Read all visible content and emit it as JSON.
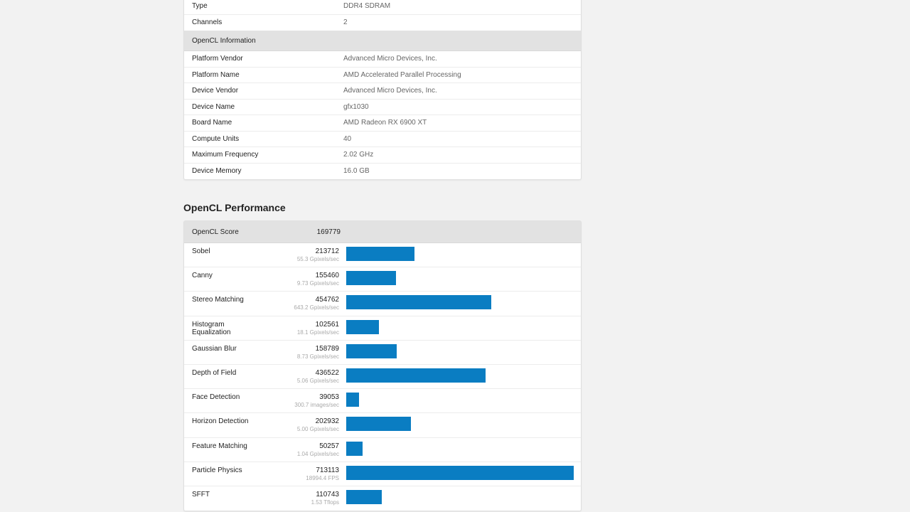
{
  "system": {
    "rows_top": [
      {
        "key": "Type",
        "value": "DDR4 SDRAM"
      },
      {
        "key": "Channels",
        "value": "2"
      }
    ],
    "opencl_section_title": "OpenCL Information",
    "opencl_rows": [
      {
        "key": "Platform Vendor",
        "value": "Advanced Micro Devices, Inc."
      },
      {
        "key": "Platform Name",
        "value": "AMD Accelerated Parallel Processing"
      },
      {
        "key": "Device Vendor",
        "value": "Advanced Micro Devices, Inc."
      },
      {
        "key": "Device Name",
        "value": "gfx1030"
      },
      {
        "key": "Board Name",
        "value": "AMD Radeon RX 6900 XT"
      },
      {
        "key": "Compute Units",
        "value": "40"
      },
      {
        "key": "Maximum Frequency",
        "value": "2.02 GHz"
      },
      {
        "key": "Device Memory",
        "value": "16.0 GB"
      }
    ]
  },
  "performance": {
    "title": "OpenCL Performance",
    "score_label": "OpenCL Score",
    "score_value": "169779",
    "bar_color": "#0a7dc2",
    "benchmarks": [
      {
        "name": "Sobel",
        "score": "213712",
        "sub": "55.3 Gpixels/sec",
        "value": 213712
      },
      {
        "name": "Canny",
        "score": "155460",
        "sub": "9.73 Gpixels/sec",
        "value": 155460
      },
      {
        "name": "Stereo Matching",
        "score": "454762",
        "sub": "643.2 Gpixels/sec",
        "value": 454762
      },
      {
        "name": "Histogram Equalization",
        "score": "102561",
        "sub": "18.1 Gpixels/sec",
        "value": 102561
      },
      {
        "name": "Gaussian Blur",
        "score": "158789",
        "sub": "8.73 Gpixels/sec",
        "value": 158789
      },
      {
        "name": "Depth of Field",
        "score": "436522",
        "sub": "5.06 Gpixels/sec",
        "value": 436522
      },
      {
        "name": "Face Detection",
        "score": "39053",
        "sub": "300.7 images/sec",
        "value": 39053
      },
      {
        "name": "Horizon Detection",
        "score": "202932",
        "sub": "5.00 Gpixels/sec",
        "value": 202932
      },
      {
        "name": "Feature Matching",
        "score": "50257",
        "sub": "1.04 Gpixels/sec",
        "value": 50257
      },
      {
        "name": "Particle Physics",
        "score": "713113",
        "sub": "18994.4 FPS",
        "value": 713113
      },
      {
        "name": "SFFT",
        "score": "110743",
        "sub": "1.53 Tflops",
        "value": 110743
      }
    ]
  }
}
